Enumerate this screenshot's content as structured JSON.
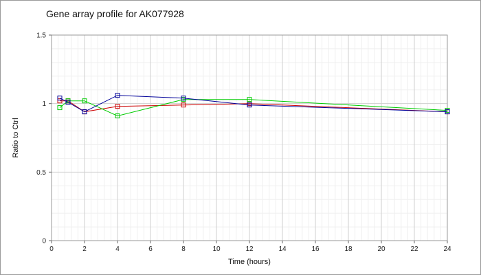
{
  "chart_data": {
    "type": "line",
    "title": "Gene array profile for AK077928",
    "xlabel": "Time (hours)",
    "ylabel": "Ratio to Ctrl",
    "xlim": [
      0,
      24
    ],
    "ylim": [
      0,
      1.5
    ],
    "x_ticks": [
      0,
      2,
      4,
      6,
      8,
      10,
      12,
      14,
      16,
      18,
      20,
      22,
      24
    ],
    "y_ticks": [
      0,
      0.5,
      1,
      1.5
    ],
    "y_tick_labels": [
      "0",
      "0.5",
      "1",
      "1.5"
    ],
    "grid": true,
    "legend": "none",
    "series": [
      {
        "color": "#cc0000",
        "x": [
          0.5,
          1,
          2,
          4,
          8,
          12,
          24
        ],
        "y": [
          1.02,
          1.02,
          0.94,
          0.98,
          0.99,
          1.0,
          0.94
        ]
      },
      {
        "color": "#00cc00",
        "x": [
          0.5,
          1,
          2,
          4,
          8,
          12,
          24
        ],
        "y": [
          0.97,
          1.02,
          1.02,
          0.91,
          1.03,
          1.03,
          0.95
        ]
      },
      {
        "color": "#000099",
        "x": [
          0.5,
          1,
          2,
          4,
          8,
          12,
          24
        ],
        "y": [
          1.04,
          1.01,
          0.94,
          1.06,
          1.04,
          0.99,
          0.94
        ]
      }
    ]
  }
}
